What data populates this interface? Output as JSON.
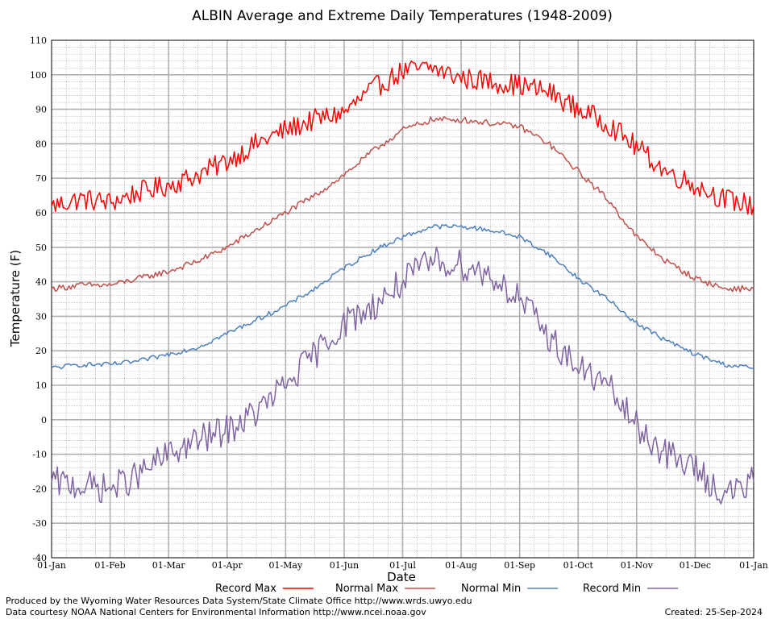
{
  "chart_data": {
    "type": "line",
    "title": "ALBIN Average and Extreme Daily Temperatures (1948-2009)",
    "xlabel": "Date",
    "ylabel": "Temperature (F)",
    "ylim": [
      -40,
      110
    ],
    "yticks": [
      110,
      100,
      90,
      80,
      70,
      60,
      50,
      40,
      30,
      20,
      10,
      0,
      -10,
      -20,
      -30,
      -40
    ],
    "ytick_labels": [
      "110",
      "100",
      "90",
      "80",
      "70",
      "60",
      "50",
      "40",
      "30",
      "20",
      "10",
      "0",
      "-10",
      "-20",
      "-30",
      "-40"
    ],
    "xticks": [
      "01-Jan",
      "01-Feb",
      "01-Mar",
      "01-Apr",
      "01-May",
      "01-Jun",
      "01-Jul",
      "01-Aug",
      "01-Sep",
      "01-Oct",
      "01-Nov",
      "01-Dec",
      "01-Jan"
    ],
    "grid": true,
    "legend_position": "bottom",
    "x": [
      "01-Jan",
      "15-Jan",
      "01-Feb",
      "15-Feb",
      "01-Mar",
      "15-Mar",
      "01-Apr",
      "15-Apr",
      "01-May",
      "15-May",
      "01-Jun",
      "15-Jun",
      "01-Jul",
      "15-Jul",
      "01-Aug",
      "15-Aug",
      "01-Sep",
      "15-Sep",
      "01-Oct",
      "15-Oct",
      "01-Nov",
      "15-Nov",
      "01-Dec",
      "15-Dec",
      "01-Jan"
    ],
    "series": [
      {
        "name": "Record Max",
        "color": "#ff0000",
        "values": [
          62,
          64,
          63,
          66,
          68,
          71,
          75,
          80,
          84,
          87,
          89,
          96,
          101,
          102,
          99,
          98,
          97,
          95,
          90,
          86,
          79,
          72,
          68,
          64,
          62
        ]
      },
      {
        "name": "Normal Max",
        "color": "#c0504d",
        "values": [
          38,
          39,
          39,
          41,
          43,
          46,
          50,
          55,
          60,
          65,
          71,
          78,
          84,
          87,
          87,
          86,
          85,
          80,
          72,
          64,
          53,
          46,
          41,
          38,
          38
        ]
      },
      {
        "name": "Normal Min",
        "color": "#4f81bd",
        "values": [
          15,
          16,
          16,
          17,
          19,
          21,
          25,
          29,
          33,
          38,
          44,
          49,
          53,
          56,
          56,
          55,
          53,
          48,
          41,
          35,
          28,
          23,
          19,
          16,
          15
        ]
      },
      {
        "name": "Record Min",
        "color": "#8064a2",
        "values": [
          -18,
          -19,
          -20,
          -16,
          -10,
          -6,
          -3,
          2,
          10,
          19,
          28,
          33,
          40,
          46,
          45,
          42,
          35,
          24,
          15,
          10,
          -2,
          -10,
          -14,
          -22,
          -18
        ]
      }
    ]
  },
  "footer": {
    "produced_by": "Produced by the Wyoming Water Resources Data System/State Climate Office http://www.wrds.uwyo.edu",
    "courtesy": "Data courtesy NOAA National Centers for Environmental Information http://www.ncei.noaa.gov",
    "created": "Created:  25-Sep-2024"
  }
}
